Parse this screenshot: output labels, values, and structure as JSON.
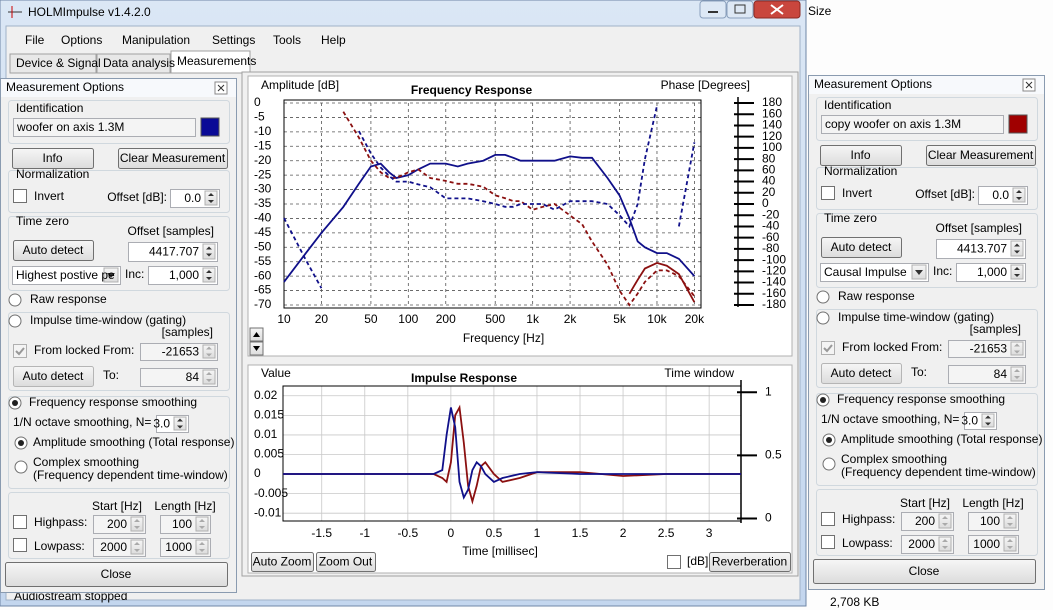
{
  "ui": {
    "window_title": "HOLMImpulse  v1.4.2.0",
    "menu": [
      "File",
      "Options",
      "Manipulation",
      "Settings",
      "Tools",
      "Help"
    ],
    "tabs": [
      "Device & Signal",
      "Data analysis",
      "Measurements"
    ],
    "auto_zoom": "Auto Zoom",
    "zoom_out": "Zoom Out",
    "db": "[dB]",
    "reverberation": "Reverberation",
    "status": "Audiostream stopped",
    "background": {
      "size": "Size",
      "file_size": "2,708 KB"
    },
    "panels": [
      {
        "title": "Measurement Options",
        "identification": "Identification",
        "name": "woofer on axis 1.3M",
        "swatch_color": "#0a0a96",
        "info": "Info",
        "clear": "Clear Measurement",
        "normalization": "Normalization",
        "invert": "Invert",
        "offset_db_label": "Offset [dB]:",
        "offset_db": "0.0",
        "time_zero": "Time zero",
        "offset_samples_label": "Offset [samples]",
        "auto_detect": "Auto detect",
        "offset_samples": "4417.707",
        "detect_mode": "Highest postive pe",
        "inc_label": "Inc:",
        "inc": "1,000",
        "raw_response": "Raw response",
        "impulse_window": "Impulse time-window (gating)",
        "samples": "[samples]",
        "from_locked": "From locked",
        "from_label": "From:",
        "from": "-21653",
        "auto_detect_2": "Auto detect",
        "to_label": "To:",
        "to": "84",
        "smoothing": "Frequency response smoothing",
        "octave_label": "1/N octave smoothing, N=",
        "octave": "3.0",
        "amplitude_smoothing": "Amplitude smoothing (Total response)",
        "complex_smoothing": "Complex smoothing",
        "complex_note": "(Frequency dependent time-window)",
        "start_label": "Start [Hz]",
        "length_label": "Length [Hz]",
        "highpass": "Highpass:",
        "highpass_start": "200",
        "highpass_length": "100",
        "lowpass": "Lowpass:",
        "lowpass_start": "2000",
        "lowpass_length": "1000",
        "close": "Close"
      },
      {
        "title": "Measurement Options",
        "identification": "Identification",
        "name": "copy woofer on axis 1.3M",
        "swatch_color": "#a00000",
        "info": "Info",
        "clear": "Clear Measurement",
        "normalization": "Normalization",
        "invert": "Invert",
        "offset_db_label": "Offset [dB]:",
        "offset_db": "0.0",
        "time_zero": "Time zero",
        "offset_samples_label": "Offset [samples]",
        "auto_detect": "Auto detect",
        "offset_samples": "4413.707",
        "detect_mode": "Causal Impulse",
        "inc_label": "Inc:",
        "inc": "1,000",
        "raw_response": "Raw response",
        "impulse_window": "Impulse time-window (gating)",
        "samples": "[samples]",
        "from_locked": "From locked",
        "from_label": "From:",
        "from": "-21653",
        "auto_detect_2": "Auto detect",
        "to_label": "To:",
        "to": "84",
        "smoothing": "Frequency response smoothing",
        "octave_label": "1/N octave smoothing, N=",
        "octave": "3.0",
        "amplitude_smoothing": "Amplitude smoothing (Total response)",
        "complex_smoothing": "Complex smoothing",
        "complex_note": "(Frequency dependent time-window)",
        "start_label": "Start [Hz]",
        "length_label": "Length [Hz]",
        "highpass": "Highpass:",
        "highpass_start": "200",
        "highpass_length": "100",
        "lowpass": "Lowpass:",
        "lowpass_start": "2000",
        "lowpass_length": "1000",
        "close": "Close"
      }
    ]
  },
  "chart_data": [
    {
      "type": "line",
      "title": "Frequency Response",
      "ylabel": "Amplitude [dB]",
      "y2label": "Phase [Degrees]",
      "xlabel": "Frequency [Hz]",
      "xscale": "log",
      "xlim": [
        10,
        22600
      ],
      "xticks": [
        10,
        20,
        50,
        100,
        200,
        500,
        {
          "value": 1000,
          "label": "1k"
        },
        {
          "value": 2000,
          "label": "2k"
        },
        {
          "value": 5000,
          "label": "5k"
        },
        {
          "value": 10000,
          "label": "10k"
        },
        {
          "value": 20000,
          "label": "20k"
        }
      ],
      "ylim": [
        -70,
        0
      ],
      "yticks": [
        0,
        -5,
        -10,
        -15,
        -20,
        -25,
        -30,
        -35,
        -40,
        -45,
        -50,
        -55,
        -60,
        -65,
        -70
      ],
      "y2lim": [
        -180,
        180
      ],
      "y2ticks": [
        180,
        160,
        140,
        120,
        100,
        80,
        60,
        40,
        20,
        0,
        -20,
        -40,
        -60,
        -80,
        -100,
        -120,
        -140,
        -160,
        -180
      ],
      "grid": true,
      "grid_style": "dashed",
      "x": [
        10,
        15,
        20,
        30,
        40,
        50,
        60,
        70,
        80,
        100,
        120,
        150,
        200,
        250,
        300,
        400,
        500,
        600,
        700,
        800,
        1000,
        1200,
        1500,
        2000,
        2500,
        3000,
        4000,
        5000,
        6000,
        7000,
        8000,
        10000,
        12000,
        15000,
        20000
      ],
      "series": [
        {
          "color": "#10108a",
          "dash": false,
          "values": [
            -62,
            -52,
            -45,
            -36,
            -28,
            -22,
            -21,
            -24,
            -26,
            -25,
            -23,
            -21,
            -21,
            -22,
            -21,
            -20,
            -18,
            -18,
            -19,
            -20,
            -20,
            -20,
            -20,
            -18.5,
            -19,
            -19,
            -26,
            -32,
            -40,
            -48,
            -50,
            -52,
            -52,
            -54,
            -60
          ]
        },
        {
          "color": "#8b1010",
          "dash": true,
          "values": [
            null,
            null,
            null,
            -3,
            -12,
            -20,
            -24,
            -26,
            -26,
            -24,
            -23,
            -26,
            -27,
            -28,
            -28,
            -29,
            -32,
            -33,
            -34,
            -34,
            -37,
            -36,
            -35,
            -39,
            -42,
            -48,
            -56,
            -65,
            -70,
            -66,
            -62,
            -58,
            -58,
            -60,
            -67
          ]
        },
        {
          "color": "#10108a",
          "dash": true,
          "axis": "y2",
          "values": [
            -25,
            -100,
            -150,
            null,
            130,
            90,
            65,
            50,
            40,
            40,
            35,
            30,
            10,
            10,
            10,
            5,
            0,
            -5,
            -5,
            0,
            0,
            0,
            -10,
            5,
            5,
            5,
            0,
            -20,
            -40,
            0,
            80,
            175,
            null,
            -40,
            110
          ]
        },
        {
          "color": "#8b1010",
          "dash": false,
          "axis": "y2",
          "values": [
            null,
            null,
            null,
            null,
            null,
            null,
            null,
            null,
            null,
            null,
            null,
            null,
            null,
            null,
            null,
            null,
            null,
            null,
            null,
            null,
            null,
            null,
            null,
            null,
            null,
            null,
            null,
            null,
            -160,
            -135,
            -115,
            -105,
            -110,
            -125,
            -175
          ]
        }
      ]
    },
    {
      "type": "line",
      "title": "Impulse Response",
      "ylabel": "Value",
      "y2label": "Time window",
      "xlabel": "Time [millisec]",
      "xlim": [
        -1.95,
        3.37
      ],
      "xticks": [
        -1.5,
        -1,
        -0.5,
        0,
        0.5,
        1,
        1.5,
        2,
        2.5,
        3
      ],
      "ylim": [
        -0.012,
        0.0225
      ],
      "yticks": [
        0.02,
        0.015,
        0.01,
        0.005,
        0,
        -0.005,
        -0.01
      ],
      "y2lim": [
        -0.02,
        1.05
      ],
      "y2ticks": [
        1,
        0.5,
        0
      ],
      "grid": true,
      "grid_style": "solid",
      "x": [
        -1.95,
        -0.2,
        -0.1,
        -0.05,
        0,
        0.05,
        0.1,
        0.15,
        0.2,
        0.25,
        0.3,
        0.35,
        0.4,
        0.5,
        0.6,
        0.8,
        1,
        1.5,
        2,
        2.5,
        3,
        3.37
      ],
      "series": [
        {
          "color": "#8b1010",
          "dash": false,
          "values": [
            0,
            0,
            -0.001,
            -0.002,
            0.003,
            0.015,
            0.017,
            0.008,
            -0.003,
            -0.007,
            -0.003,
            0.002,
            0.003,
            0,
            -0.002,
            -0.001,
            0.0005,
            0.0005,
            -0.0005,
            0,
            0,
            0
          ]
        },
        {
          "color": "#10108a",
          "dash": false,
          "values": [
            0,
            0,
            0.001,
            0.01,
            0.017,
            0.012,
            -0.002,
            -0.006,
            -0.004,
            0.001,
            0.003,
            0.002,
            0,
            -0.002,
            -0.001,
            0,
            0.0005,
            0,
            0,
            0,
            0,
            0
          ]
        }
      ]
    }
  ]
}
